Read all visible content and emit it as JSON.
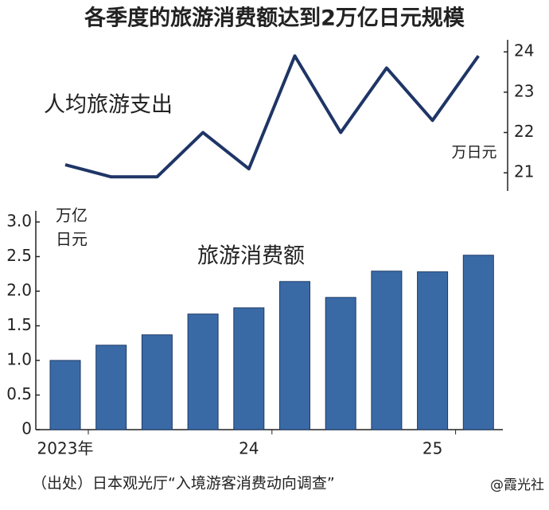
{
  "title": "各季度的旅游消费额达到2万亿日元规模",
  "source": "（出处）日本观光厅“入境游客消费动向调查”",
  "watermark": "@霞光社",
  "chart_data": [
    {
      "type": "line",
      "label": "人均旅游支出",
      "unit": "万日元",
      "color": "#1f3566",
      "values": [
        21.2,
        20.9,
        20.9,
        22.0,
        21.1,
        23.9,
        22.0,
        23.6,
        22.3,
        23.9
      ],
      "ylim": [
        20.55,
        24.3
      ],
      "yticks": [
        21,
        22,
        23,
        24
      ],
      "axis_side": "right"
    },
    {
      "type": "bar",
      "label": "旅游消费额",
      "unit": [
        "万亿",
        "日元"
      ],
      "color": "#3a6aa6",
      "categories": [
        "2023年",
        null,
        null,
        null,
        "24",
        null,
        null,
        null,
        "25",
        null
      ],
      "values": [
        1.0,
        1.22,
        1.37,
        1.67,
        1.76,
        2.14,
        1.91,
        2.29,
        2.28,
        2.52
      ],
      "ylim": [
        0,
        3.0
      ],
      "yticks": [
        0,
        {
          "value": 0.5,
          "label": "0.5"
        },
        {
          "value": 1,
          "label": "1.0"
        },
        {
          "value": 1.5,
          "label": "1.5"
        },
        {
          "value": 2,
          "label": "2.0"
        },
        2.5,
        {
          "value": 3,
          "label": "3.0"
        }
      ]
    }
  ]
}
